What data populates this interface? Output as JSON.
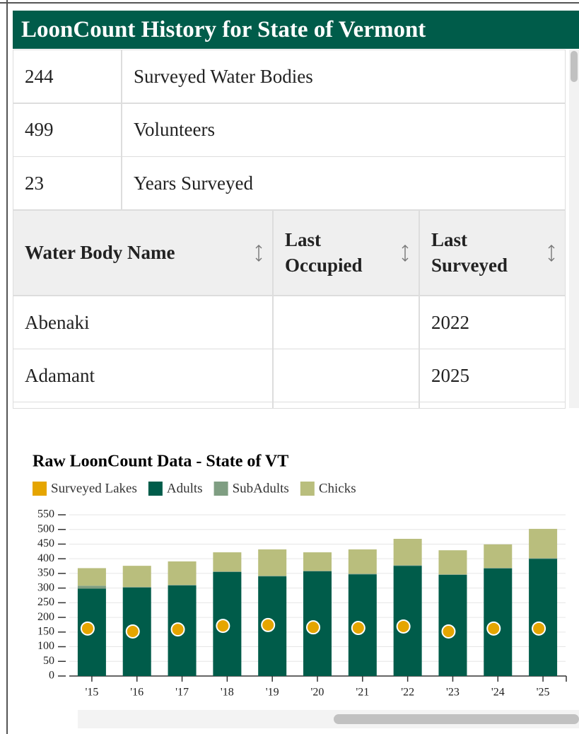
{
  "header": {
    "title": "LoonCount History for State of Vermont"
  },
  "summary": {
    "rows": [
      [
        "244",
        "Surveyed Water Bodies"
      ],
      [
        "499",
        "Volunteers"
      ],
      [
        "23",
        "Years Surveyed"
      ]
    ]
  },
  "table": {
    "columns": [
      "Water Body Name",
      "Last Occupied",
      "Last Surveyed"
    ],
    "rows": [
      [
        "Abenaki",
        null,
        "2022"
      ],
      [
        "Adamant",
        null,
        "2025"
      ]
    ]
  },
  "chart_data": {
    "type": "bar",
    "stacked": true,
    "grid": true,
    "title": "Raw LoonCount Data - State of VT",
    "categories": [
      "'15",
      "'16",
      "'17",
      "'18",
      "'19",
      "'20",
      "'21",
      "'22",
      "'23",
      "'24",
      "'25"
    ],
    "series": [
      {
        "name": "Surveyed Lakes",
        "color": "#e5a500",
        "type": "dot",
        "values": [
          162,
          152,
          159,
          171,
          174,
          166,
          164,
          169,
          152,
          162,
          162
        ]
      },
      {
        "name": "Adults",
        "color": "#005c4a",
        "values": [
          298,
          302,
          309,
          355,
          340,
          357,
          347,
          376,
          345,
          367,
          400
        ]
      },
      {
        "name": "SubAdults",
        "color": "#7f9e82",
        "values": [
          10,
          2,
          2,
          2,
          2,
          2,
          2,
          2,
          2,
          2,
          2
        ]
      },
      {
        "name": "Chicks",
        "color": "#b9be7d",
        "values": [
          60,
          72,
          80,
          65,
          90,
          63,
          83,
          90,
          82,
          80,
          100
        ]
      }
    ],
    "ylim": [
      0,
      550
    ],
    "yticks": [
      0,
      50,
      100,
      150,
      200,
      250,
      300,
      350,
      400,
      450,
      500,
      550
    ]
  }
}
